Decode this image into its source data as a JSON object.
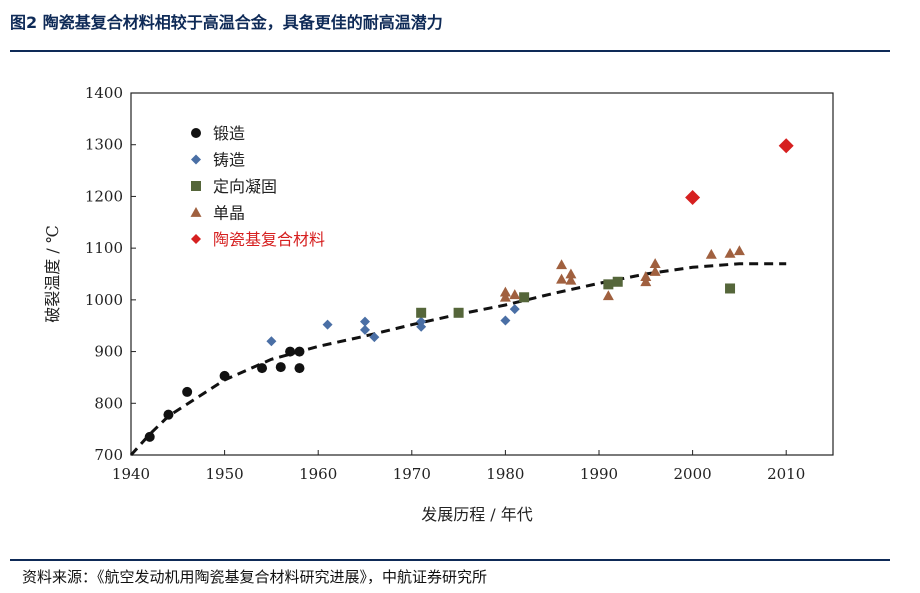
{
  "page_title": "图2 陶瓷基复合材料相较于高温合金，具备更佳的耐高温潜力",
  "source": "资料来源：《航空发动机用陶瓷基复合材料研究进展》，中航证券研究所",
  "colors": {
    "title": "#0e2a57",
    "forging": "#111111",
    "casting": "#4a6fa5",
    "directional": "#55663a",
    "single_crystal": "#a0603f",
    "cmc": "#d62020"
  },
  "chart_data": {
    "type": "scatter",
    "xlabel": "发展历程 / 年代",
    "ylabel": "破裂温度 / ℃",
    "xlim": [
      1940,
      2015
    ],
    "ylim": [
      700,
      1400
    ],
    "xticks": [
      1940,
      1950,
      1960,
      1970,
      1980,
      1990,
      2000,
      2010
    ],
    "yticks": [
      700,
      800,
      900,
      1000,
      1100,
      1200,
      1300,
      1400
    ],
    "legend_position": "top-left",
    "series": [
      {
        "name": "锻造",
        "marker": "circle",
        "color": "#111111",
        "points": [
          [
            1942,
            735
          ],
          [
            1944,
            778
          ],
          [
            1946,
            822
          ],
          [
            1950,
            853
          ],
          [
            1954,
            868
          ],
          [
            1956,
            870
          ],
          [
            1957,
            900
          ],
          [
            1958,
            900
          ],
          [
            1958,
            868
          ]
        ]
      },
      {
        "name": "铸造",
        "marker": "diamond",
        "color": "#4a6fa5",
        "points": [
          [
            1955,
            920
          ],
          [
            1961,
            952
          ],
          [
            1965,
            958
          ],
          [
            1965,
            942
          ],
          [
            1966,
            928
          ],
          [
            1971,
            958
          ],
          [
            1971,
            948
          ],
          [
            1980,
            960
          ],
          [
            1981,
            982
          ]
        ]
      },
      {
        "name": "定向凝固",
        "marker": "square",
        "color": "#55663a",
        "points": [
          [
            1971,
            975
          ],
          [
            1975,
            975
          ],
          [
            1982,
            1005
          ],
          [
            1991,
            1030
          ],
          [
            1992,
            1035
          ],
          [
            2004,
            1022
          ]
        ]
      },
      {
        "name": "单晶",
        "marker": "triangle",
        "color": "#a0603f",
        "points": [
          [
            1980,
            1015
          ],
          [
            1980,
            1005
          ],
          [
            1981,
            1010
          ],
          [
            1986,
            1068
          ],
          [
            1986,
            1040
          ],
          [
            1987,
            1050
          ],
          [
            1987,
            1038
          ],
          [
            1991,
            1008
          ],
          [
            1995,
            1035
          ],
          [
            1995,
            1045
          ],
          [
            1996,
            1055
          ],
          [
            1996,
            1070
          ],
          [
            2002,
            1088
          ],
          [
            2004,
            1090
          ],
          [
            2005,
            1095
          ]
        ]
      },
      {
        "name": "陶瓷基复合材料",
        "marker": "diamond",
        "color": "#d62020",
        "size": "large",
        "points": [
          [
            2000,
            1198
          ],
          [
            2010,
            1298
          ]
        ]
      }
    ],
    "trend_line": {
      "style": "dashed",
      "points": [
        [
          1940,
          700
        ],
        [
          1942,
          740
        ],
        [
          1944,
          775
        ],
        [
          1947,
          810
        ],
        [
          1950,
          845
        ],
        [
          1955,
          885
        ],
        [
          1960,
          910
        ],
        [
          1965,
          930
        ],
        [
          1970,
          952
        ],
        [
          1975,
          972
        ],
        [
          1980,
          990
        ],
        [
          1985,
          1012
        ],
        [
          1990,
          1032
        ],
        [
          1995,
          1050
        ],
        [
          2000,
          1063
        ],
        [
          2005,
          1070
        ],
        [
          2010,
          1070
        ]
      ]
    }
  }
}
